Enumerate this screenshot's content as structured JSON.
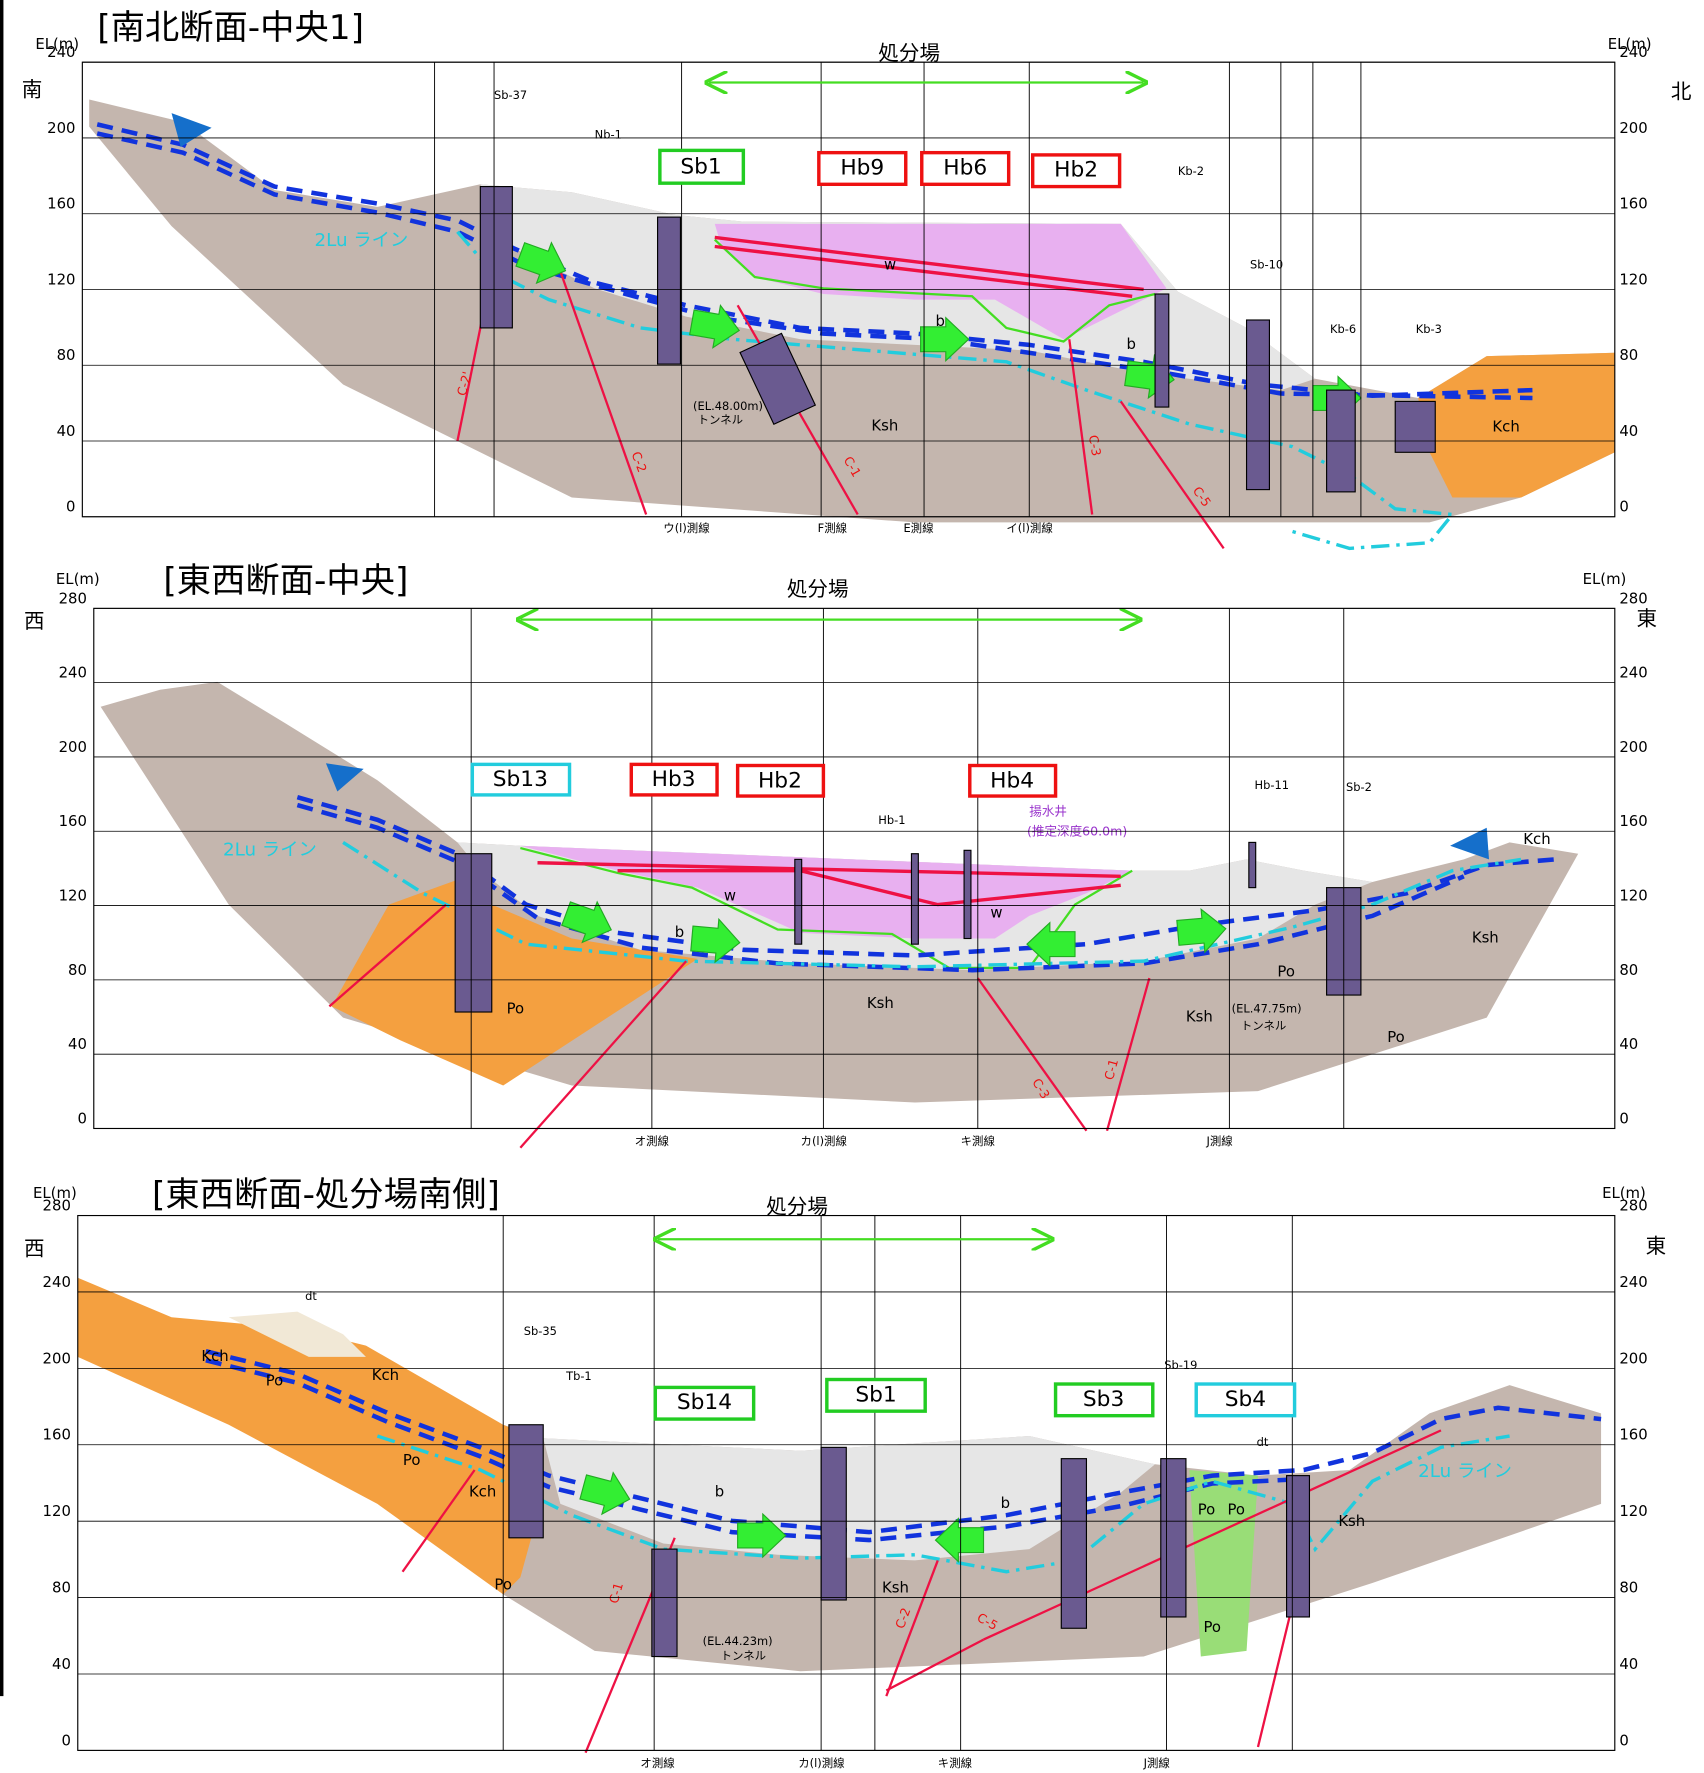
{
  "panels": [
    {
      "title": "[南北断面-中央1]",
      "axis_label": "EL(m)",
      "yticks": [
        0,
        40,
        80,
        120,
        160,
        200,
        240
      ],
      "left_dir": "南",
      "right_dir": "北",
      "facility": "処分場",
      "boreholes": [
        {
          "label": "Sb1",
          "color": "#22cc22"
        },
        {
          "label": "Hb9",
          "color": "#ee1111"
        },
        {
          "label": "Hb6",
          "color": "#ee1111"
        },
        {
          "label": "Hb2",
          "color": "#ee1111"
        }
      ],
      "borehole_names": [
        "Sb-37",
        "Nb-1",
        "Kb-2",
        "Sb-10",
        "Kb-6",
        "Kb-3"
      ],
      "labels": [
        "2Lu ライン",
        "Ksh",
        "Kch",
        "(EL.48.00m)",
        "トンネル",
        "w",
        "b",
        "b",
        "C-2'",
        "C-2",
        "C-1",
        "C-3",
        "C-5"
      ],
      "line_names": [
        "ウ(l)測線",
        "F測線",
        "E測線",
        "イ(l)測線"
      ]
    },
    {
      "title": "[東西断面-中央]",
      "axis_label": "EL(m)",
      "yticks": [
        0,
        40,
        80,
        120,
        160,
        200,
        240,
        280
      ],
      "left_dir": "西",
      "right_dir": "東",
      "facility": "処分場",
      "boreholes": [
        {
          "label": "Sb13",
          "color": "#22ccdd"
        },
        {
          "label": "Hb3",
          "color": "#ee1111"
        },
        {
          "label": "Hb2",
          "color": "#ee1111"
        },
        {
          "label": "Hb4",
          "color": "#ee1111"
        }
      ],
      "borehole_names": [
        "Hb-1",
        "Hb-11",
        "Sb-2"
      ],
      "labels": [
        "2Lu ライン",
        "揚水井",
        "(推定深度60.0m)",
        "Ksh",
        "Ksh",
        "Ksh",
        "Kch",
        "Po",
        "Po",
        "Po",
        "w",
        "w",
        "b",
        "(EL.47.75m)",
        "トンネル",
        "C-3",
        "C-1"
      ],
      "line_names": [
        "オ測線",
        "カ(l)測線",
        "キ測線",
        "J測線"
      ]
    },
    {
      "title": "[東西断面-処分場南側]",
      "axis_label": "EL(m)",
      "yticks": [
        0,
        40,
        80,
        120,
        160,
        200,
        240,
        280
      ],
      "left_dir": "西",
      "right_dir": "東",
      "facility": "処分場",
      "boreholes": [
        {
          "label": "Sb14",
          "color": "#22cc22"
        },
        {
          "label": "Sb1",
          "color": "#22cc22"
        },
        {
          "label": "Sb3",
          "color": "#22cc22"
        },
        {
          "label": "Sb4",
          "color": "#22ccdd"
        }
      ],
      "borehole_names": [
        "Sb-35",
        "Tb-1",
        "Sb-19"
      ],
      "labels": [
        "2Lu ライン",
        "dt",
        "dt",
        "Kch",
        "Po",
        "Kch",
        "Po",
        "Kch",
        "Po",
        "Ksh",
        "Ksh",
        "Po",
        "Po",
        "Po",
        "(EL.44.23m)",
        "トンネル",
        "b",
        "b",
        "C-1",
        "C-2",
        "C-5"
      ],
      "line_names": [
        "オ測線",
        "カ(l)測線",
        "キ測線",
        "J測線"
      ]
    }
  ]
}
